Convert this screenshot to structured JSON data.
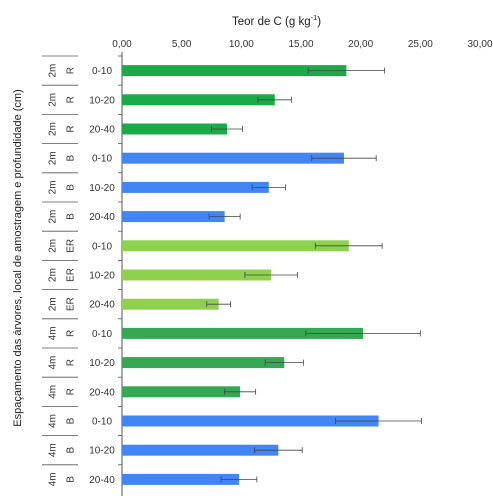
{
  "chart_data": {
    "type": "bar",
    "orientation": "horizontal",
    "title": "Teor de C (g kg",
    "title_superscript": "-1",
    "title_close": ")",
    "ylabel": "Espaçamento das árvores, local de amostragem e profundidade (cm)",
    "xlim": [
      0,
      30
    ],
    "xticks": [
      "0,00",
      "5,00",
      "10,00",
      "15,00",
      "20,00",
      "25,00",
      "30,00"
    ],
    "grid": false,
    "categories": [
      {
        "spacing": "2m",
        "local": "R",
        "depth": "0-10",
        "value": 18.8,
        "err": 3.2,
        "color": "#1aaa48"
      },
      {
        "spacing": "2m",
        "local": "R",
        "depth": "10-20",
        "value": 12.8,
        "err": 1.4,
        "color": "#1aaa48"
      },
      {
        "spacing": "2m",
        "local": "R",
        "depth": "20-40",
        "value": 8.8,
        "err": 1.3,
        "color": "#1aaa48"
      },
      {
        "spacing": "2m",
        "local": "B",
        "depth": "0-10",
        "value": 18.6,
        "err": 2.7,
        "color": "#4285f4"
      },
      {
        "spacing": "2m",
        "local": "B",
        "depth": "10-20",
        "value": 12.3,
        "err": 1.4,
        "color": "#4285f4"
      },
      {
        "spacing": "2m",
        "local": "B",
        "depth": "20-40",
        "value": 8.6,
        "err": 1.3,
        "color": "#4285f4"
      },
      {
        "spacing": "2m",
        "local": "ER",
        "depth": "0-10",
        "value": 19.0,
        "err": 2.8,
        "color": "#8fd14f"
      },
      {
        "spacing": "2m",
        "local": "ER",
        "depth": "10-20",
        "value": 12.5,
        "err": 2.2,
        "color": "#8fd14f"
      },
      {
        "spacing": "2m",
        "local": "ER",
        "depth": "20-40",
        "value": 8.1,
        "err": 1.0,
        "color": "#8fd14f"
      },
      {
        "spacing": "4m",
        "local": "R",
        "depth": "0-10",
        "value": 20.2,
        "err": 4.8,
        "color": "#34a853"
      },
      {
        "spacing": "4m",
        "local": "R",
        "depth": "10-20",
        "value": 13.6,
        "err": 1.6,
        "color": "#34a853"
      },
      {
        "spacing": "4m",
        "local": "R",
        "depth": "20-40",
        "value": 9.9,
        "err": 1.3,
        "color": "#34a853"
      },
      {
        "spacing": "4m",
        "local": "B",
        "depth": "0-10",
        "value": 21.5,
        "err": 3.6,
        "color": "#4285f4"
      },
      {
        "spacing": "4m",
        "local": "B",
        "depth": "10-20",
        "value": 13.1,
        "err": 2.0,
        "color": "#4285f4"
      },
      {
        "spacing": "4m",
        "local": "B",
        "depth": "20-40",
        "value": 9.8,
        "err": 1.5,
        "color": "#4285f4"
      }
    ]
  }
}
